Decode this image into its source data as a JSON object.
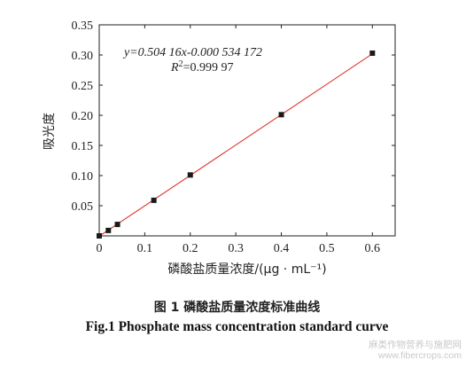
{
  "chart_data": {
    "type": "scatter",
    "ylabel": "吸光度",
    "xlabel": "磷酸盐质量浓度/(μg · mL⁻¹)",
    "xlim": [
      0,
      0.65
    ],
    "ylim": [
      0,
      0.35
    ],
    "x_ticks": [
      "0",
      "0.1",
      "0.2",
      "0.3",
      "0.4",
      "0.5",
      "0.6"
    ],
    "y_ticks": [
      "0.05",
      "0.10",
      "0.15",
      "0.20",
      "0.25",
      "0.30",
      "0.35"
    ],
    "grid": false,
    "points": [
      {
        "x": 0.0,
        "y": 0.0
      },
      {
        "x": 0.02,
        "y": 0.009
      },
      {
        "x": 0.04,
        "y": 0.019
      },
      {
        "x": 0.12,
        "y": 0.059
      },
      {
        "x": 0.2,
        "y": 0.101
      },
      {
        "x": 0.4,
        "y": 0.201
      },
      {
        "x": 0.6,
        "y": 0.303
      }
    ],
    "fit_line": {
      "slope": 0.50416,
      "intercept": -0.000534172,
      "color": "#e0342b"
    },
    "point_color": "#1a1a1a",
    "equation_text": "y=0.504 16x-0.000 534 172",
    "r2_text": "R²=0.999 97"
  },
  "caption": {
    "cn": "图 1    磷酸盐质量浓度标准曲线",
    "en": "Fig.1 Phosphate mass concentration standard curve"
  },
  "watermark": {
    "cn": "麻类作物营养与施肥网",
    "en": "www.fibercrops.com"
  }
}
